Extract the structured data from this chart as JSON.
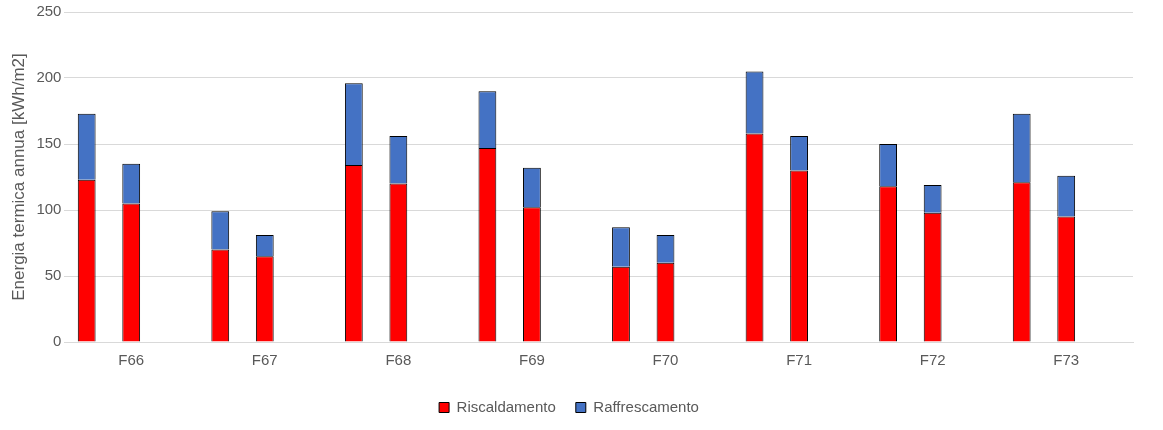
{
  "chart_data": {
    "type": "bar",
    "stacked": true,
    "ylabel": "Energia termica annua [kWh/m2]",
    "categories": [
      null,
      "F66",
      null,
      null,
      "F67",
      null,
      null,
      "F68",
      null,
      null,
      "F69",
      null,
      null,
      "F70",
      null,
      null,
      "F71",
      null,
      null,
      "F72",
      null,
      null,
      "F73",
      null
    ],
    "series": [
      {
        "name": "Riscaldamento",
        "color": "#ff0000",
        "values": [
          123,
          105,
          null,
          70,
          65,
          null,
          134,
          120,
          null,
          147,
          102,
          null,
          57,
          60,
          null,
          158,
          130,
          null,
          118,
          98,
          null,
          121,
          95,
          null
        ]
      },
      {
        "name": "Raffrescamento",
        "color": "#4472c4",
        "values": [
          50,
          30,
          null,
          29,
          16,
          null,
          62,
          36,
          null,
          43,
          30,
          null,
          30,
          21,
          null,
          47,
          26,
          null,
          32,
          21,
          null,
          52,
          31,
          null
        ]
      }
    ],
    "ylim": [
      0,
      250
    ],
    "yticks": [
      0,
      50,
      100,
      150,
      200,
      250
    ],
    "grid": "y",
    "legend": "bottom"
  }
}
